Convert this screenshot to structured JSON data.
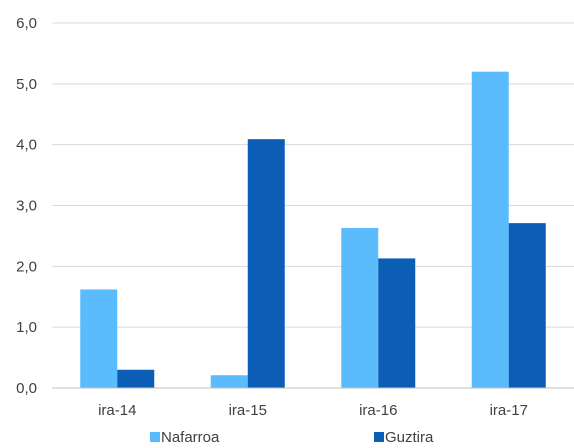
{
  "chart_data": {
    "type": "bar",
    "categories": [
      "ira-14",
      "ira-15",
      "ira-16",
      "ira-17"
    ],
    "series": [
      {
        "name": "Nafarroa",
        "values": [
          1.62,
          0.21,
          2.63,
          5.2
        ],
        "color": "#5bbcfd"
      },
      {
        "name": "Guztira",
        "values": [
          0.3,
          4.09,
          2.13,
          2.71
        ],
        "color": "#0b5db5"
      }
    ],
    "ylim": [
      0,
      6
    ],
    "yticks": [
      "0,0",
      "1,0",
      "2,0",
      "3,0",
      "4,0",
      "5,0",
      "6,0"
    ],
    "grid": true,
    "legend_position": "bottom"
  }
}
